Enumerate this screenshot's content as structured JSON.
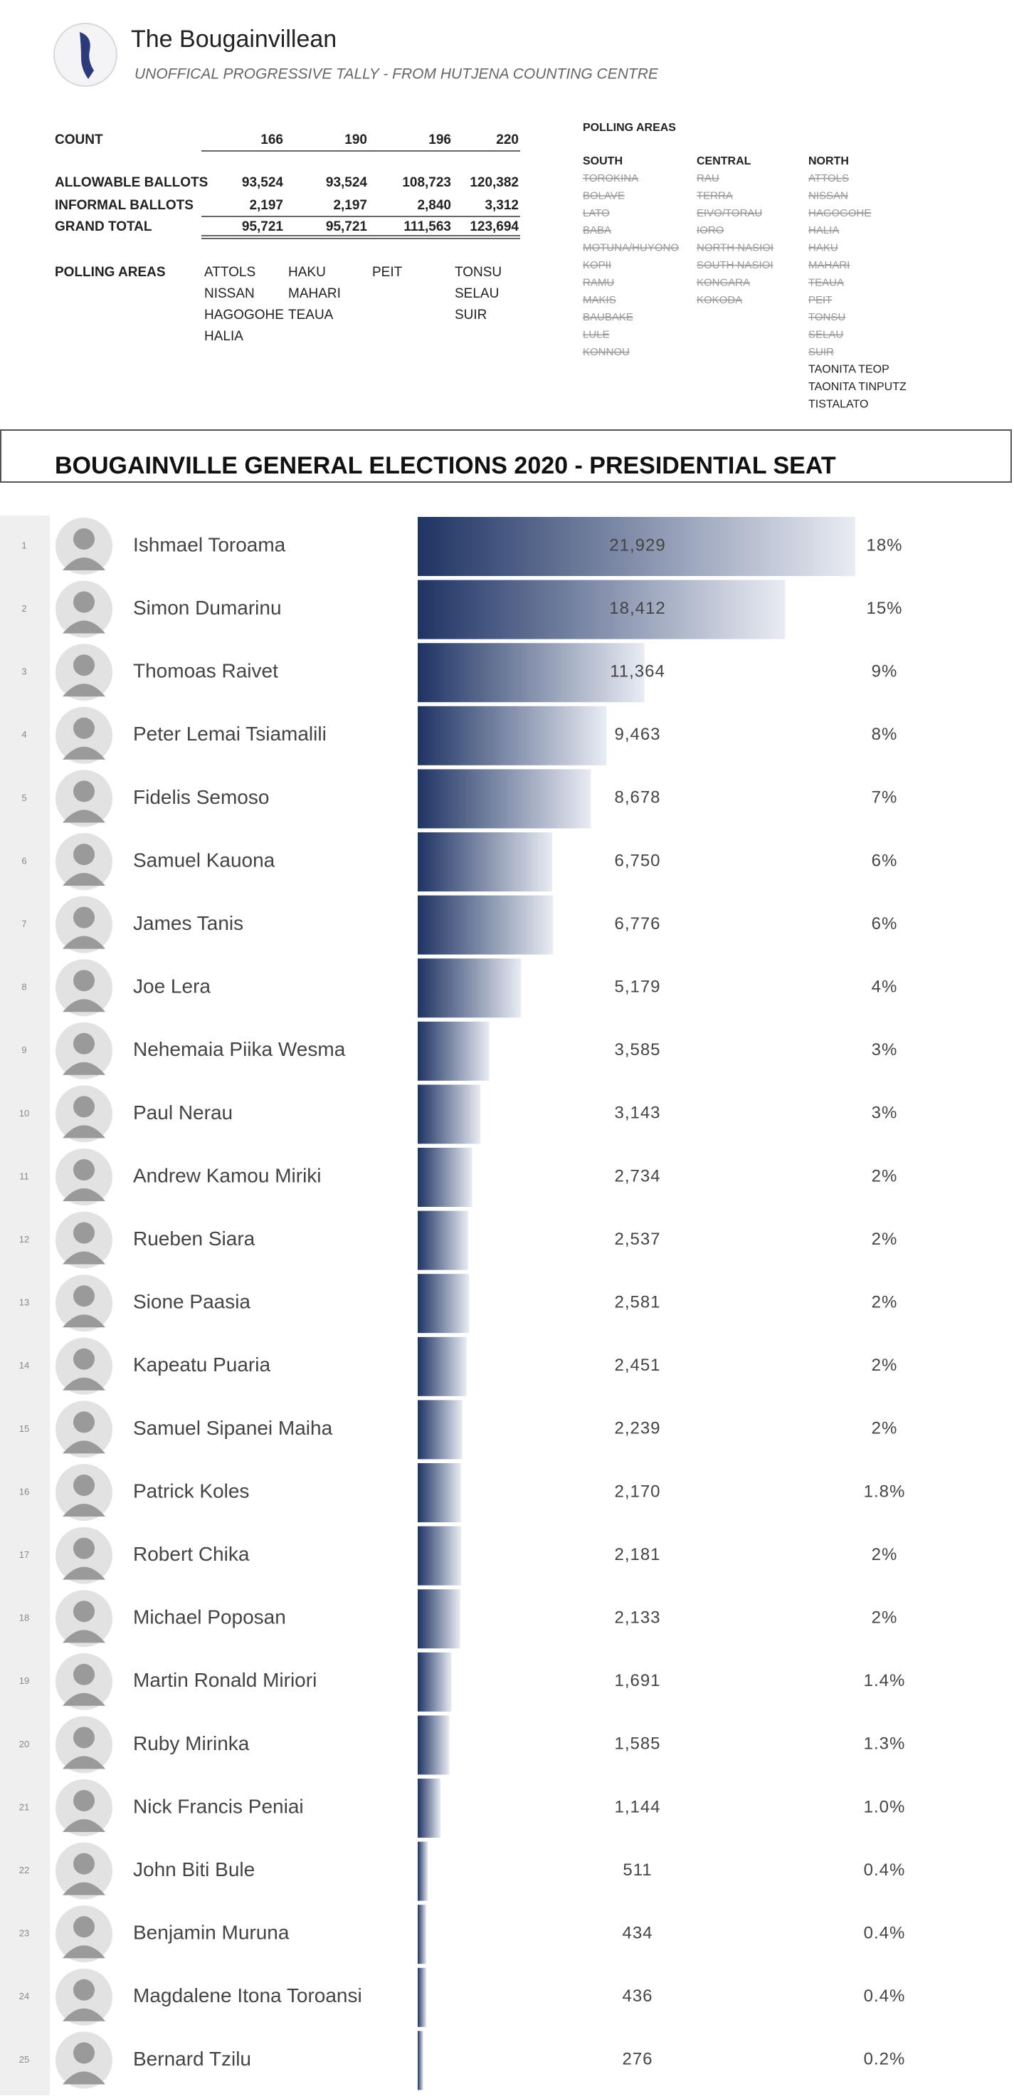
{
  "header": {
    "title": "The Bougainvillean",
    "subtitle": "UNOFFICAL PROGRESSIVE TALLY - FROM HUTJENA COUNTING CENTRE"
  },
  "tally": {
    "count_label": "COUNT",
    "counts": [
      166,
      190,
      196,
      220
    ],
    "rows": [
      {
        "label": "ALLOWABLE BALLOTS",
        "values": [
          "93,524",
          "93,524",
          "108,723",
          "120,382"
        ]
      },
      {
        "label": "INFORMAL BALLOTS",
        "values": [
          "2,197",
          "2,197",
          "2,840",
          "3,312"
        ]
      },
      {
        "label": "GRAND TOTAL",
        "values": [
          "95,721",
          "95,721",
          "111,563",
          "123,694"
        ]
      }
    ],
    "areas_label": "POLLING AREAS",
    "area_columns": [
      [
        "ATTOLS",
        "NISSAN",
        "HAGOGOHE",
        "HALIA"
      ],
      [
        "HAKU",
        "MAHARI",
        "TEAUA"
      ],
      [
        "PEIT"
      ],
      [
        "TONSU",
        "SELAU",
        "SUIR"
      ]
    ]
  },
  "polling_areas": {
    "title": "POLLING AREAS",
    "regions": [
      {
        "name": "SOUTH",
        "counted": [
          "TOROKINA",
          "BOLAVE",
          "LATO",
          "BABA",
          "MOTUNA/HUYONO",
          "KOPII",
          "RAMU",
          "MAKIS",
          "BAUBAKE",
          "LULE",
          "KONNOU"
        ],
        "remaining": []
      },
      {
        "name": "CENTRAL",
        "counted": [
          "RAU",
          "TERRA",
          "EIVO/TORAU",
          "IORO",
          "NORTH NASIOI",
          "SOUTH NASIOI",
          "KONGARA",
          "KOKODA"
        ],
        "remaining": []
      },
      {
        "name": "NORTH",
        "counted": [
          "ATTOLS",
          "NISSAN",
          "HAGOGOHE",
          "HALIA",
          "HAKU",
          "MAHARI",
          "TEAUA",
          "PEIT",
          "TONSU",
          "SELAU",
          "SUIR"
        ],
        "remaining": [
          "TAONITA TEOP",
          "TAONITA TINPUTZ",
          "TISTALATO"
        ]
      }
    ]
  },
  "chart_data": {
    "type": "bar",
    "orientation": "horizontal",
    "title": "BOUGAINVILLE GENERAL ELECTIONS 2020 - PRESIDENTIAL SEAT",
    "ranks": [
      1,
      2,
      3,
      4,
      5,
      6,
      7,
      8,
      9,
      10,
      11,
      12,
      13,
      14,
      15,
      16,
      17,
      18,
      19,
      20,
      21,
      22,
      23,
      24,
      25
    ],
    "categories": [
      "Ishmael Toroama",
      "Simon Dumarinu",
      "Thomoas Raivet",
      "Peter Lemai Tsiamalili",
      "Fidelis Semoso",
      "Samuel Kauona",
      "James Tanis",
      "Joe Lera",
      "Nehemaia Piika Wesma",
      "Paul Nerau",
      "Andrew Kamou Miriki",
      "Rueben Siara",
      "Sione Paasia",
      "Kapeatu Puaria",
      "Samuel Sipanei Maiha",
      "Patrick Koles",
      "Robert Chika",
      "Michael Poposan",
      "Martin Ronald Miriori",
      "Ruby Mirinka",
      "Nick Francis Peniai",
      "John Biti Bule",
      "Benjamin Muruna",
      "Magdalene Itona  Toroansi",
      "Bernard Tzilu"
    ],
    "values": [
      21929,
      18412,
      11364,
      9463,
      8678,
      6750,
      6776,
      5179,
      3585,
      3143,
      2734,
      2537,
      2581,
      2451,
      2239,
      2170,
      2181,
      2133,
      1691,
      1585,
      1144,
      511,
      434,
      436,
      276
    ],
    "value_labels": [
      "21,929",
      "18,412",
      "11,364",
      "9,463",
      "8,678",
      "6,750",
      "6,776",
      "5,179",
      "3,585",
      "3,143",
      "2,734",
      "2,537",
      "2,581",
      "2,451",
      "2,239",
      "2,170",
      "2,181",
      "2,133",
      "1,691",
      "1,585",
      "1,144",
      "511",
      "434",
      "436",
      "276"
    ],
    "shares": [
      "18%",
      "15%",
      "9%",
      "8%",
      "7%",
      "6%",
      "6%",
      "4%",
      "3%",
      "3%",
      "2%",
      "2%",
      "2%",
      "2%",
      "2%",
      "1.8%",
      "2%",
      "2%",
      "1.4%",
      "1.3%",
      "1.0%",
      "0.4%",
      "0.4%",
      "0.4%",
      "0.2%"
    ],
    "color_start": "#1f3464",
    "color_end": "#e9ecf3"
  }
}
